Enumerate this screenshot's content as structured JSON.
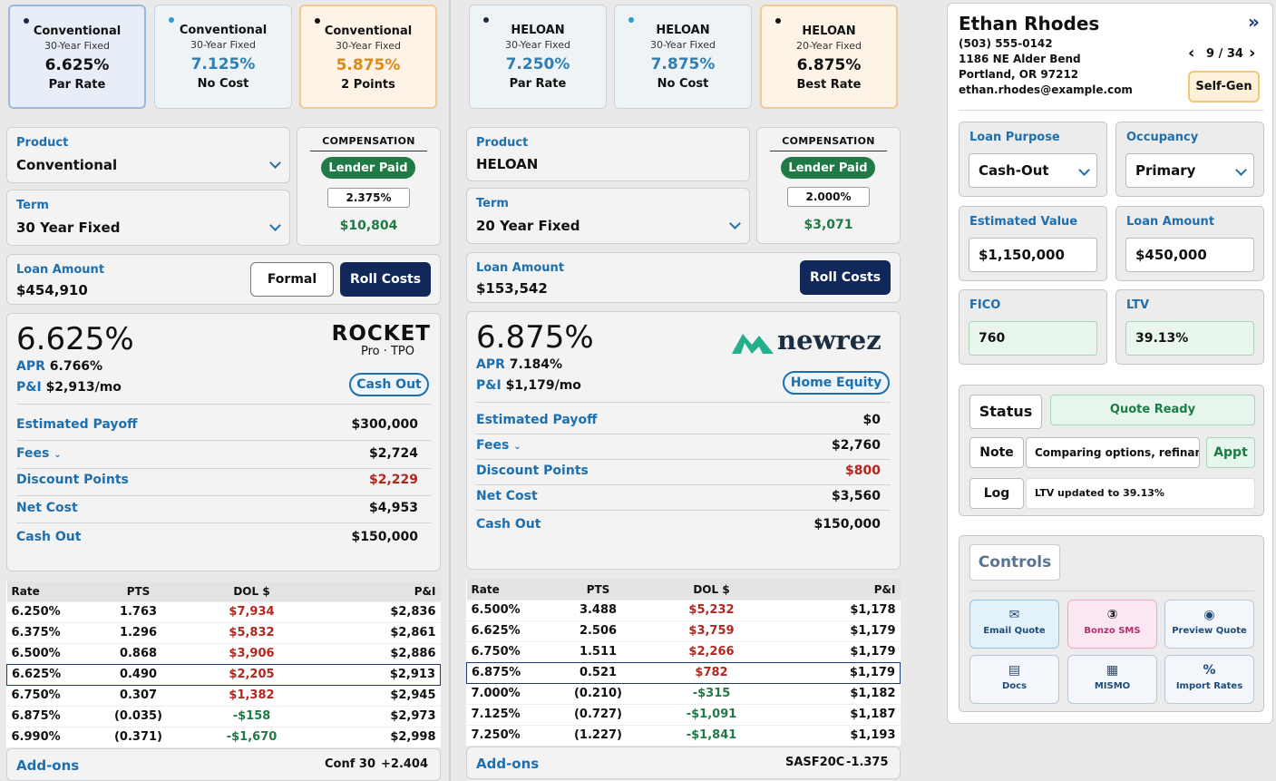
{
  "left": {
    "cards": [
      {
        "title": "Conventional",
        "sub": "30-Year Fixed",
        "rate": "6.625%",
        "desc": "Par Rate",
        "dotColor": "#1b2a4a",
        "rateColor": "#111111"
      },
      {
        "title": "Conventional",
        "sub": "30-Year Fixed",
        "rate": "7.125%",
        "desc": "No Cost",
        "dotColor": "#2c9ad6",
        "rateColor": "#2f7fb6"
      },
      {
        "title": "Conventional",
        "sub": "30-Year Fixed",
        "rate": "5.875%",
        "desc": "2 Points",
        "dotColor": "#111111",
        "rateColor": "#d88a1a"
      }
    ],
    "product_label": "Product",
    "product": "Conventional",
    "term_label": "Term",
    "term": "30 Year Fixed",
    "comp_label": "COMPENSATION",
    "comp_pill": "Lender Paid",
    "comp_pct": "2.375%",
    "comp_amt": "$10,804",
    "loan_amount_label": "Loan Amount",
    "loan_amount": "$454,910",
    "formal_btn": "Formal",
    "roll_btn": "Roll Costs",
    "rate": "6.625%",
    "apr_label": "APR",
    "apr": "6.766%",
    "pi_label": "P&I",
    "pi": "$2,913/mo",
    "lender_line1": "ROCKET",
    "lender_line2": "Pro · TPO",
    "badge": "Cash Out",
    "rows": [
      {
        "k": "Estimated Payoff",
        "v": "$300,000",
        "red": false
      },
      {
        "k": "Fees",
        "v": "$2,724",
        "red": false
      },
      {
        "k": "Discount Points",
        "v": "$2,229",
        "red": true
      },
      {
        "k": "Net Cost",
        "v": "$4,953",
        "red": false
      },
      {
        "k": "Cash Out",
        "v": "$150,000",
        "red": false
      }
    ],
    "table_headers": [
      "Rate",
      "PTS",
      "DOL $",
      "P&I"
    ],
    "table": [
      [
        "6.250%",
        "1.763",
        "$7,934",
        "$2,836"
      ],
      [
        "6.375%",
        "1.296",
        "$5,832",
        "$2,861"
      ],
      [
        "6.500%",
        "0.868",
        "$3,906",
        "$2,886"
      ],
      [
        "6.625%",
        "0.490",
        "$2,205",
        "$2,913"
      ],
      [
        "6.750%",
        "0.307",
        "$1,382",
        "$2,945"
      ],
      [
        "6.875%",
        "(0.035)",
        "-$158",
        "$2,973"
      ],
      [
        "6.990%",
        "(0.371)",
        "-$1,670",
        "$2,998"
      ]
    ],
    "addons_label": "Add-ons",
    "addon_code": "Conf 30",
    "addon_val": "+2.404"
  },
  "mid": {
    "cards": [
      {
        "title": "HELOAN",
        "sub": "30-Year Fixed",
        "rate": "7.250%",
        "desc": "Par Rate",
        "dotColor": "#1b2a4a",
        "rateColor": "#2f7fb6"
      },
      {
        "title": "HELOAN",
        "sub": "30-Year Fixed",
        "rate": "7.875%",
        "desc": "No Cost",
        "dotColor": "#2c9ad6",
        "rateColor": "#2f7fb6"
      },
      {
        "title": "HELOAN",
        "sub": "20-Year Fixed",
        "rate": "6.875%",
        "desc": "Best Rate",
        "dotColor": "#111111",
        "rateColor": "#111111"
      }
    ],
    "product_label": "Product",
    "product": "HELOAN",
    "term_label": "Term",
    "term": "20 Year Fixed",
    "comp_label": "COMPENSATION",
    "comp_pill": "Lender Paid",
    "comp_pct": "2.000%",
    "comp_amt": "$3,071",
    "loan_amount_label": "Loan Amount",
    "loan_amount": "$153,542",
    "roll_btn": "Roll Costs",
    "rate": "6.875%",
    "apr_label": "APR",
    "apr": "7.184%",
    "pi_label": "P&I",
    "pi": "$1,179/mo",
    "lender": "newrez",
    "badge": "Home Equity",
    "rows": [
      {
        "k": "Estimated Payoff",
        "v": "$0",
        "red": false
      },
      {
        "k": "Fees",
        "v": "$2,760",
        "red": false
      },
      {
        "k": "Discount Points",
        "v": "$800",
        "red": true
      },
      {
        "k": "Net Cost",
        "v": "$3,560",
        "red": false
      },
      {
        "k": "Cash Out",
        "v": "$150,000",
        "red": false
      }
    ],
    "table_headers": [
      "Rate",
      "PTS",
      "DOL $",
      "P&I"
    ],
    "table": [
      [
        "6.500%",
        "3.488",
        "$5,232",
        "$1,178"
      ],
      [
        "6.625%",
        "2.506",
        "$3,759",
        "$1,179"
      ],
      [
        "6.750%",
        "1.511",
        "$2,266",
        "$1,179"
      ],
      [
        "6.875%",
        "0.521",
        "$782",
        "$1,179"
      ],
      [
        "7.000%",
        "(0.210)",
        "-$315",
        "$1,182"
      ],
      [
        "7.125%",
        "(0.727)",
        "-$1,091",
        "$1,187"
      ],
      [
        "7.250%",
        "(1.227)",
        "-$1,841",
        "$1,193"
      ]
    ],
    "addons_label": "Add-ons",
    "addon_code": "SASF20C",
    "addon_val": "-1.375"
  },
  "right": {
    "name": "Ethan Rhodes",
    "phone": "(503) 555-0142",
    "addr1": "1186 NE Alder Bend",
    "addr2": "Portland, OR 97212",
    "email": "ethan.rhodes@example.com",
    "pager": "9 / 34",
    "selfgen": "Self-Gen",
    "loan_purpose_label": "Loan Purpose",
    "loan_purpose": "Cash-Out",
    "occupancy_label": "Occupancy",
    "occupancy": "Primary",
    "est_value_label": "Estimated Value",
    "est_value": "$1,150,000",
    "loan_amount_label": "Loan Amount",
    "loan_amount": "$450,000",
    "fico_label": "FICO",
    "fico": "760",
    "ltv_label": "LTV",
    "ltv": "39.13%",
    "status_label": "Status",
    "status": "Quote Ready",
    "note_label": "Note",
    "note": "Comparing options, refinance",
    "appt": "Appt",
    "log_label": "Log",
    "log": "LTV updated to 39.13%",
    "controls_label": "Controls",
    "controls": [
      {
        "label": "Email Quote",
        "icon": "✉"
      },
      {
        "label": "Bonzo SMS",
        "icon": "③"
      },
      {
        "label": "Preview Quote",
        "icon": "◉"
      },
      {
        "label": "Docs",
        "icon": "▤"
      },
      {
        "label": "MISMO",
        "icon": "▦"
      },
      {
        "label": "Import Rates",
        "icon": "%"
      }
    ]
  }
}
